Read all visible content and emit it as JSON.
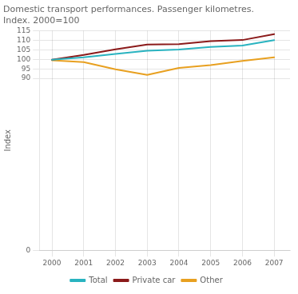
{
  "chart_data": {
    "type": "line",
    "title": "Domestic transport performances. Passenger kilometres.\nIndex. 2000=100",
    "ylabel": "Index",
    "x": [
      2000,
      2001,
      2002,
      2003,
      2004,
      2005,
      2006,
      2007
    ],
    "series": [
      {
        "name": "Total",
        "color": "#29b3c0",
        "values": [
          99.8,
          101.0,
          102.8,
          104.5,
          105.1,
          106.5,
          107.2,
          110.0
        ]
      },
      {
        "name": "Private car",
        "color": "#8b1a1a",
        "values": [
          99.8,
          102.3,
          105.2,
          107.7,
          107.9,
          109.5,
          110.1,
          113.2
        ]
      },
      {
        "name": "Other",
        "color": "#e8a020",
        "values": [
          99.5,
          98.5,
          94.8,
          91.8,
          95.5,
          97.0,
          99.2,
          101.0
        ]
      }
    ],
    "xlim": [
      1999.6,
      2007.5
    ],
    "xticks": [
      2000,
      2001,
      2002,
      2003,
      2004,
      2005,
      2006,
      2007
    ],
    "ylim": [
      0,
      115
    ],
    "yticks": [
      0,
      90,
      95,
      100,
      105,
      110,
      115
    ],
    "grid": true,
    "legend": "bottom"
  }
}
